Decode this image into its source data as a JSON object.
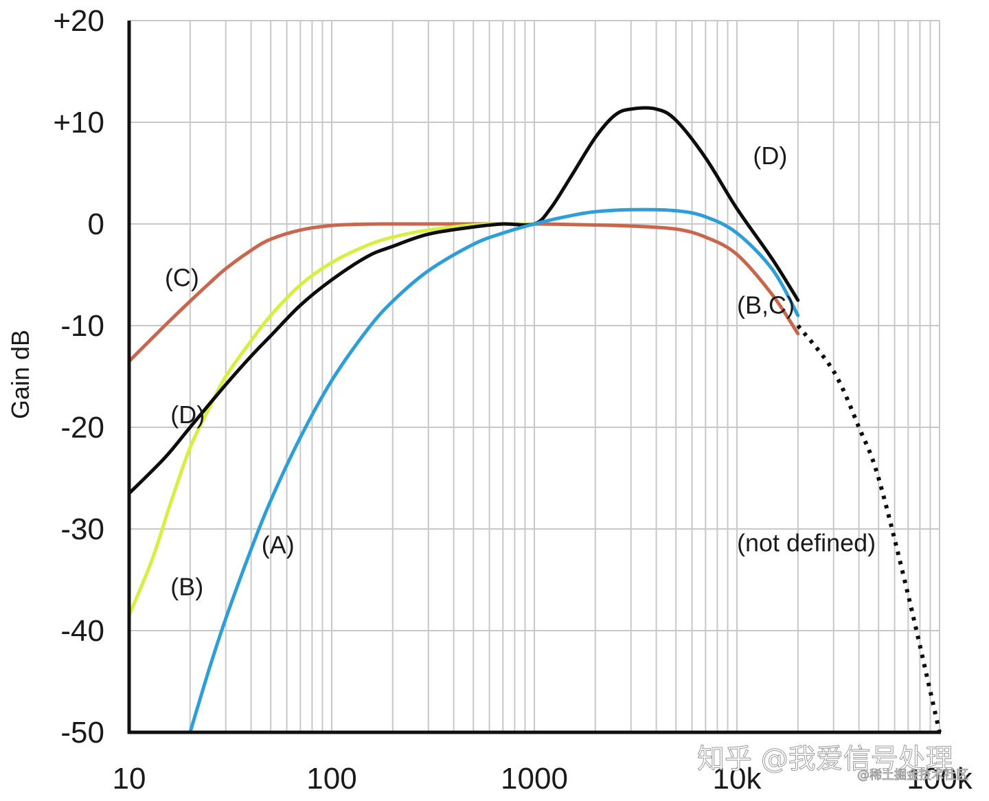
{
  "chart_data": {
    "type": "line",
    "title": "",
    "xlabel": "",
    "ylabel": "Gain dB",
    "xscale": "log",
    "xlim": [
      10,
      100000
    ],
    "ylim": [
      -50,
      20
    ],
    "grid": true,
    "x_ticks": [
      {
        "value": 10,
        "label": "10"
      },
      {
        "value": 100,
        "label": "100"
      },
      {
        "value": 1000,
        "label": "1000"
      },
      {
        "value": 10000,
        "label": "10k"
      },
      {
        "value": 100000,
        "label": "100k"
      }
    ],
    "y_ticks": [
      {
        "value": 20,
        "label": "+20"
      },
      {
        "value": 10,
        "label": "+10"
      },
      {
        "value": 0,
        "label": "0"
      },
      {
        "value": -10,
        "label": "-10"
      },
      {
        "value": -20,
        "label": "-20"
      },
      {
        "value": -30,
        "label": "-30"
      },
      {
        "value": -40,
        "label": "-40"
      },
      {
        "value": -50,
        "label": "-50"
      }
    ],
    "series": [
      {
        "name": "A",
        "color": "#2d9ed8",
        "x": [
          20,
          25,
          30,
          40,
          50,
          70,
          100,
          150,
          200,
          300,
          500,
          700,
          1000,
          1500,
          2000,
          3000,
          5000,
          7000,
          10000,
          15000,
          20000
        ],
        "y": [
          -50,
          -43.6,
          -38.8,
          -32,
          -27.2,
          -21,
          -15.4,
          -10.4,
          -7.6,
          -4.6,
          -2,
          -0.9,
          0,
          0.8,
          1.2,
          1.4,
          1.3,
          0.7,
          -0.9,
          -4.5,
          -9
        ]
      },
      {
        "name": "B",
        "color": "#d8ee40",
        "x": [
          10,
          13,
          16,
          20,
          25,
          30,
          40,
          50,
          70,
          100,
          150,
          200,
          300,
          500,
          700,
          1000
        ],
        "y": [
          -38.5,
          -33,
          -27.5,
          -22,
          -18,
          -15,
          -11.5,
          -9,
          -6,
          -3.8,
          -2.1,
          -1.3,
          -0.6,
          -0.1,
          0,
          0
        ]
      },
      {
        "name": "C",
        "color": "#c8674e",
        "x": [
          10,
          15,
          20,
          25,
          30,
          40,
          50,
          70,
          100,
          150,
          200,
          500,
          1000,
          2000,
          3000,
          5000,
          7000,
          10000,
          15000,
          20000
        ],
        "y": [
          -13.5,
          -10,
          -7.6,
          -5.8,
          -4.4,
          -2.6,
          -1.5,
          -0.6,
          -0.15,
          -0.02,
          0,
          0,
          0,
          -0.1,
          -0.2,
          -0.5,
          -1.3,
          -3,
          -7,
          -10.8
        ]
      },
      {
        "name": "D",
        "color": "#0d0d0d",
        "x": [
          10,
          15,
          20,
          30,
          40,
          50,
          70,
          100,
          150,
          200,
          300,
          500,
          700,
          1000,
          1200,
          1500,
          2000,
          2500,
          3000,
          4000,
          5000,
          7000,
          10000,
          15000,
          20000
        ],
        "y": [
          -26.5,
          -23,
          -20,
          -15.8,
          -13,
          -11,
          -8,
          -5.5,
          -3.2,
          -2.2,
          -1,
          -0.3,
          0,
          0,
          1.5,
          4.5,
          8.5,
          10.7,
          11.3,
          11.3,
          10.2,
          6.5,
          1.5,
          -3.5,
          -7.5
        ]
      }
    ],
    "extrapolation": {
      "style": "dotted",
      "color": "#0d0d0d",
      "x": [
        20000,
        30000,
        40000,
        50000,
        70000,
        100000
      ],
      "y": [
        -10,
        -14.5,
        -20,
        -25,
        -36.5,
        -50
      ]
    },
    "annotations": [
      {
        "text": "(C)",
        "x": 15,
        "y": -5.3
      },
      {
        "text": "(D)",
        "x": 16,
        "y": -18.8
      },
      {
        "text": "(B)",
        "x": 16,
        "y": -35.7
      },
      {
        "text": "(A)",
        "x": 45,
        "y": -31.6
      },
      {
        "text": "(D)",
        "x": 12000,
        "y": 6.7
      },
      {
        "text": "(B,C)",
        "x": 10000,
        "y": -8
      },
      {
        "text": "(not defined)",
        "x": 10000,
        "y": -31.4
      }
    ]
  },
  "watermark": {
    "primary": "知乎 @我爱信号处理",
    "secondary": "@稀土掘金技术社区"
  }
}
